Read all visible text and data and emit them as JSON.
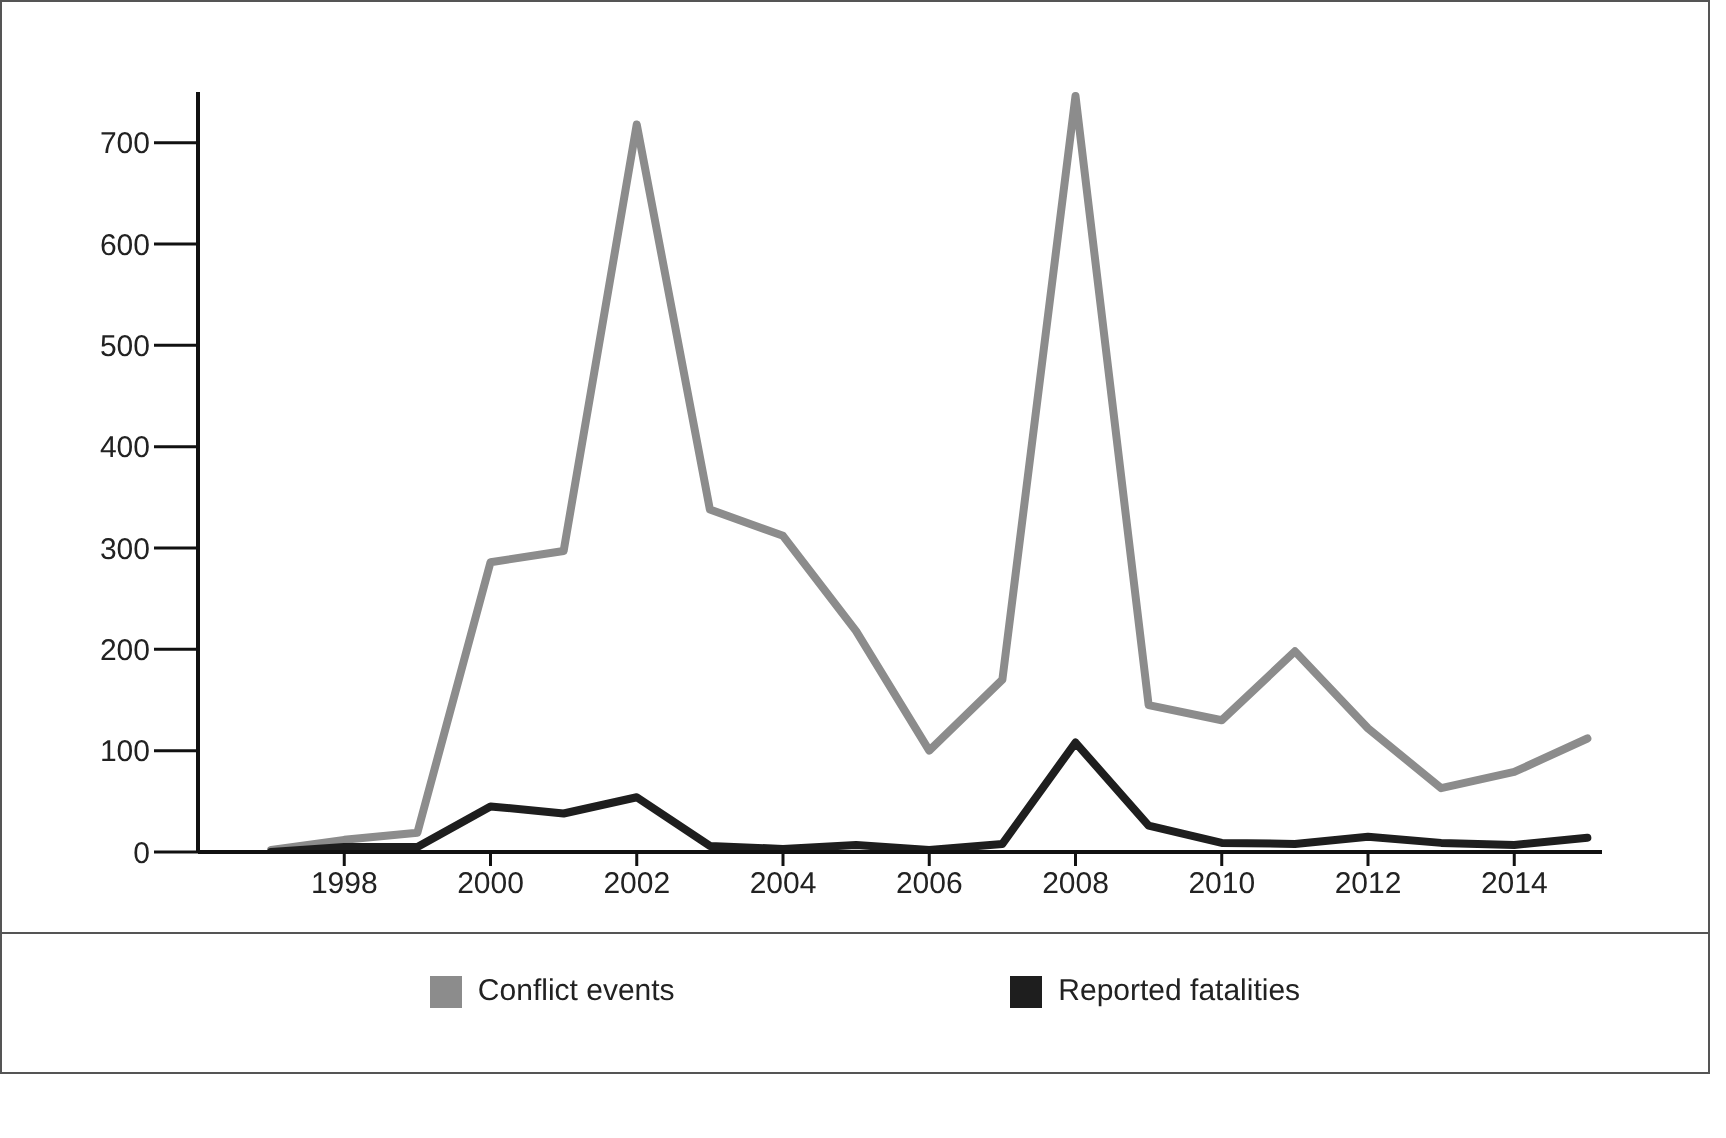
{
  "chart_data": {
    "type": "line",
    "x": [
      1997,
      1998,
      1999,
      2000,
      2001,
      2002,
      2003,
      2004,
      2005,
      2006,
      2007,
      2008,
      2009,
      2010,
      2011,
      2012,
      2013,
      2014,
      2015
    ],
    "series": [
      {
        "name": "Conflict events",
        "color": "#8c8c8c",
        "values": [
          2,
          12,
          19,
          286,
          297,
          718,
          338,
          312,
          218,
          100,
          170,
          746,
          145,
          130,
          198,
          122,
          63,
          79,
          112
        ]
      },
      {
        "name": "Reported fatalities",
        "color": "#1e1e1e",
        "values": [
          0,
          5,
          5,
          45,
          38,
          54,
          6,
          3,
          7,
          2,
          8,
          108,
          26,
          9,
          8,
          15,
          9,
          7,
          14
        ]
      }
    ],
    "xlim": [
      1996,
      2015.2
    ],
    "xticks": [
      1998,
      2000,
      2002,
      2004,
      2006,
      2008,
      2010,
      2012,
      2014
    ],
    "ylim": [
      0,
      750
    ],
    "yticks": [
      0,
      100,
      200,
      300,
      400,
      500,
      600,
      700
    ],
    "grid": false,
    "legend": "bottom",
    "marker": "none",
    "line_style": "solid"
  }
}
